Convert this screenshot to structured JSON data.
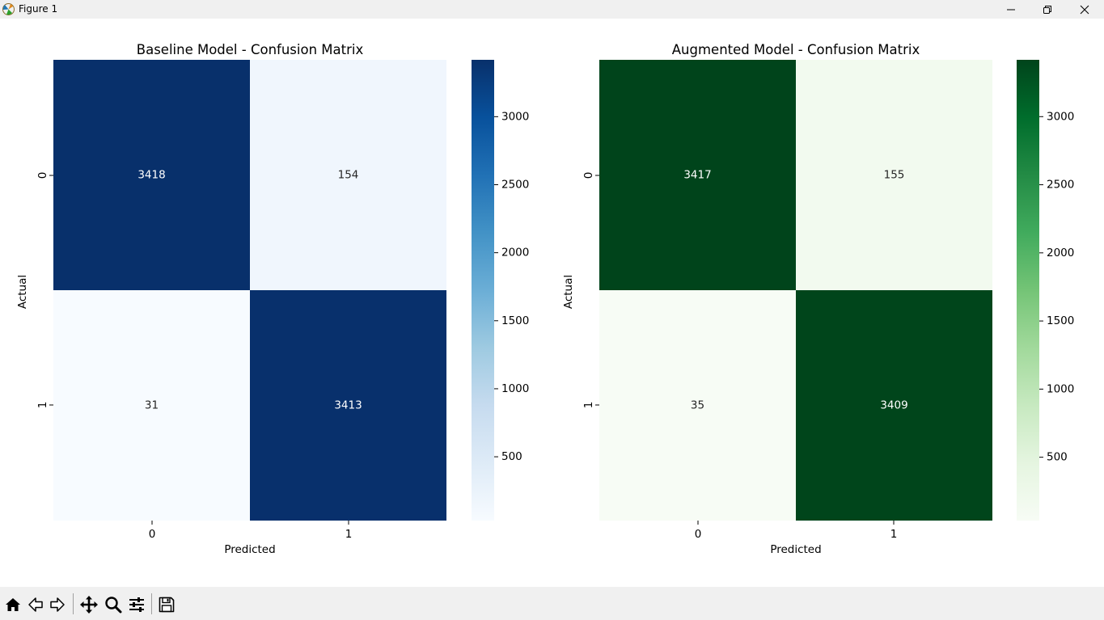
{
  "window": {
    "title": "Figure 1",
    "icons": [
      "matplotlib-icon",
      "minimize-icon",
      "restore-icon",
      "close-icon"
    ]
  },
  "toolbar": {
    "icons": [
      "home-icon",
      "back-arrow-icon",
      "forward-arrow-icon",
      "pan-icon",
      "zoom-icon",
      "configure-subplots-icon",
      "save-icon"
    ]
  },
  "chart_data": [
    {
      "type": "heatmap",
      "title": "Baseline Model - Confusion Matrix",
      "xlabel": "Predicted",
      "ylabel": "Actual",
      "x_categories": [
        "0",
        "1"
      ],
      "y_categories": [
        "0",
        "1"
      ],
      "values": [
        [
          3418,
          154
        ],
        [
          31,
          3413
        ]
      ],
      "colormap": "Blues",
      "colorbar": {
        "range": [
          31,
          3418
        ],
        "ticks": [
          500,
          1000,
          1500,
          2000,
          2500,
          3000
        ]
      },
      "colors": {
        "high": "#08306b",
        "low": "#f7fbff"
      }
    },
    {
      "type": "heatmap",
      "title": "Augmented Model - Confusion Matrix",
      "xlabel": "Predicted",
      "ylabel": "Actual",
      "x_categories": [
        "0",
        "1"
      ],
      "y_categories": [
        "0",
        "1"
      ],
      "values": [
        [
          3417,
          155
        ],
        [
          35,
          3409
        ]
      ],
      "colormap": "Greens",
      "colorbar": {
        "range": [
          35,
          3417
        ],
        "ticks": [
          500,
          1000,
          1500,
          2000,
          2500,
          3000
        ]
      },
      "colors": {
        "high": "#00441b",
        "low": "#f7fcf5"
      }
    }
  ]
}
